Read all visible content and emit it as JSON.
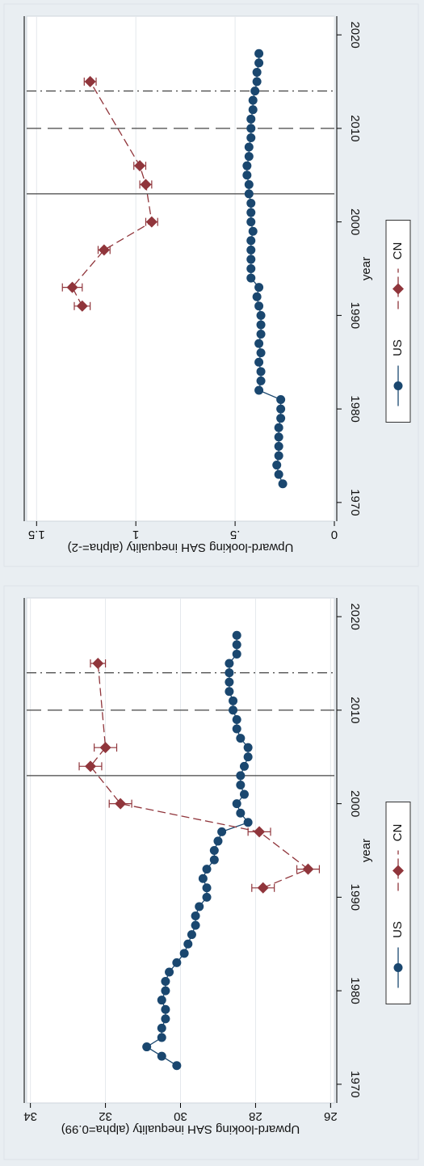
{
  "colors": {
    "background": "#e9eef2",
    "plot_background": "#ffffff",
    "us": "#1a476f",
    "cn": "#90353b",
    "gridline": "#e4e8ec",
    "axis": "#000000"
  },
  "chart_data": [
    {
      "type": "line",
      "orientation": "rotated-90",
      "xlabel": "year",
      "ylabel": "Upward-looking SAH inequality (alpha=-2)",
      "xlim": [
        1968,
        2022
      ],
      "ylim": [
        0,
        1.55
      ],
      "xticks": [
        1970,
        1980,
        1990,
        2000,
        2010,
        2020
      ],
      "xtick_labels": [
        "1970",
        "1980",
        "1990",
        "2000",
        "2010",
        "2020"
      ],
      "yticks": [
        0,
        0.5,
        1,
        1.5
      ],
      "ytick_labels": [
        "0",
        ".5",
        "1",
        "1.5"
      ],
      "grid": true,
      "legend": {
        "position": "bottom",
        "entries": [
          "US",
          "CN"
        ]
      },
      "vlines": [
        {
          "x": 2003,
          "style": "solid"
        },
        {
          "x": 2010,
          "style": "dash"
        },
        {
          "x": 2014,
          "style": "dashdot"
        }
      ],
      "series": [
        {
          "name": "US",
          "marker": "circle",
          "line": "solid",
          "x": [
            1972,
            1973,
            1974,
            1975,
            1976,
            1977,
            1978,
            1979,
            1980,
            1981,
            1982,
            1983,
            1984,
            1985,
            1986,
            1987,
            1988,
            1989,
            1990,
            1991,
            1992,
            1993,
            1994,
            1995,
            1996,
            1997,
            1998,
            1999,
            2000,
            2001,
            2002,
            2003,
            2004,
            2005,
            2006,
            2007,
            2008,
            2009,
            2010,
            2011,
            2012,
            2013,
            2014,
            2015,
            2016,
            2017,
            2018
          ],
          "y": [
            0.26,
            0.28,
            0.29,
            0.28,
            0.28,
            0.28,
            0.28,
            0.27,
            0.27,
            0.27,
            0.38,
            0.37,
            0.37,
            0.38,
            0.37,
            0.38,
            0.37,
            0.37,
            0.37,
            0.38,
            0.39,
            0.38,
            0.42,
            0.42,
            0.42,
            0.42,
            0.42,
            0.41,
            0.42,
            0.42,
            0.42,
            0.43,
            0.43,
            0.44,
            0.44,
            0.43,
            0.43,
            0.42,
            0.42,
            0.42,
            0.41,
            0.41,
            0.4,
            0.39,
            0.39,
            0.38,
            0.38
          ]
        },
        {
          "name": "CN",
          "marker": "diamond",
          "line": "dash",
          "x": [
            1991,
            1993,
            1997,
            2000,
            2004,
            2006,
            2015
          ],
          "y": [
            1.27,
            1.32,
            1.16,
            0.92,
            0.95,
            0.98,
            1.23
          ],
          "err": [
            0.04,
            0.05,
            0.03,
            0.03,
            0.03,
            0.03,
            0.03
          ]
        }
      ]
    },
    {
      "type": "line",
      "orientation": "rotated-90",
      "xlabel": "year",
      "ylabel": "Upward-looking SAH inequality (alpha=0.99)",
      "xlim": [
        1968,
        2022
      ],
      "ylim": [
        25.9,
        34.1
      ],
      "xticks": [
        1970,
        1980,
        1990,
        2000,
        2010,
        2020
      ],
      "xtick_labels": [
        "1970",
        "1980",
        "1990",
        "2000",
        "2010",
        "2020"
      ],
      "yticks": [
        26,
        28,
        30,
        32,
        34
      ],
      "ytick_labels": [
        "26",
        "28",
        "30",
        "32",
        "34"
      ],
      "grid": true,
      "legend": {
        "position": "bottom",
        "entries": [
          "US",
          "CN"
        ]
      },
      "vlines": [
        {
          "x": 2003,
          "style": "solid"
        },
        {
          "x": 2010,
          "style": "dash"
        },
        {
          "x": 2014,
          "style": "dashdot"
        }
      ],
      "series": [
        {
          "name": "US",
          "marker": "circle",
          "line": "solid",
          "x": [
            1972,
            1973,
            1974,
            1975,
            1976,
            1977,
            1978,
            1979,
            1980,
            1981,
            1982,
            1983,
            1984,
            1985,
            1986,
            1987,
            1988,
            1989,
            1990,
            1991,
            1992,
            1993,
            1994,
            1995,
            1996,
            1997,
            1998,
            1999,
            2000,
            2001,
            2002,
            2003,
            2004,
            2005,
            2006,
            2007,
            2008,
            2009,
            2010,
            2011,
            2012,
            2013,
            2014,
            2015,
            2016,
            2017,
            2018
          ],
          "y": [
            30.1,
            30.5,
            30.9,
            30.5,
            30.5,
            30.4,
            30.4,
            30.5,
            30.4,
            30.4,
            30.3,
            30.1,
            29.9,
            29.8,
            29.7,
            29.6,
            29.6,
            29.5,
            29.3,
            29.3,
            29.4,
            29.3,
            29.1,
            29.1,
            29.0,
            28.9,
            28.2,
            28.4,
            28.5,
            28.3,
            28.4,
            28.4,
            28.3,
            28.2,
            28.2,
            28.4,
            28.5,
            28.5,
            28.6,
            28.6,
            28.7,
            28.7,
            28.7,
            28.7,
            28.5,
            28.5,
            28.5
          ],
          "connect_last": 2015
        },
        {
          "name": "CN",
          "marker": "diamond",
          "line": "dash",
          "x": [
            1991,
            1993,
            1997,
            2000,
            2004,
            2006,
            2015
          ],
          "y": [
            27.8,
            26.6,
            27.9,
            31.6,
            32.4,
            32.0,
            32.2
          ],
          "err": [
            0.3,
            0.3,
            0.3,
            0.3,
            0.3,
            0.3,
            0.2
          ]
        }
      ]
    }
  ]
}
